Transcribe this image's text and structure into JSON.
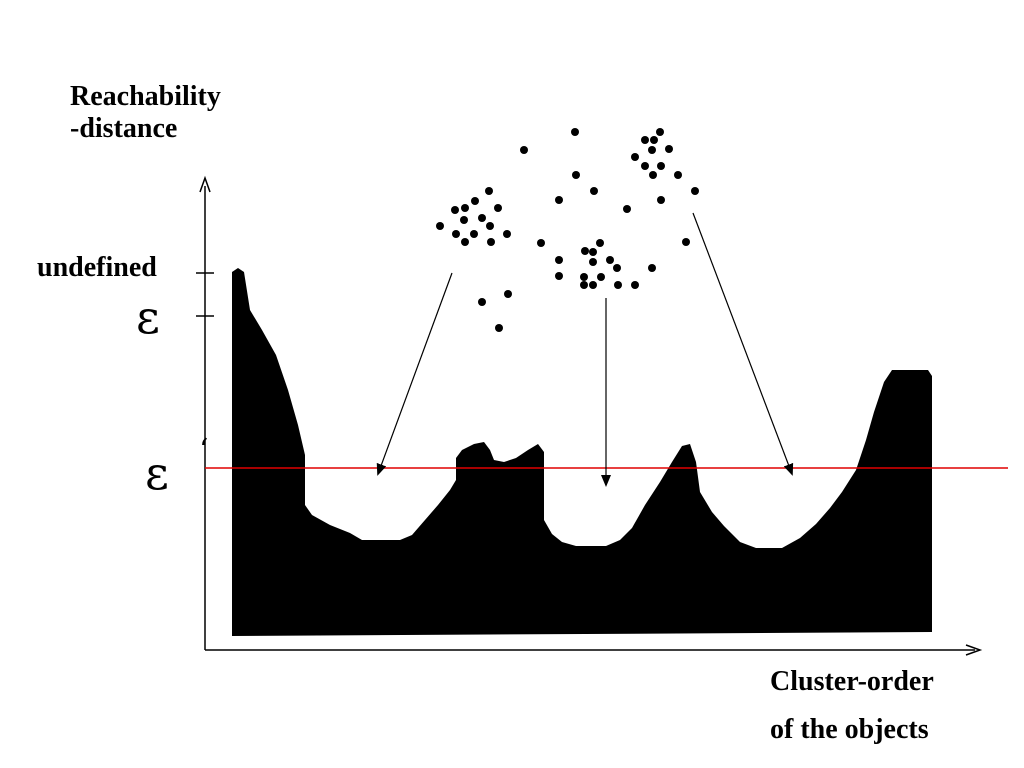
{
  "y_axis": {
    "label_line1": "Reachability",
    "label_line2": "-distance"
  },
  "x_axis": {
    "label_line1": "Cluster-order",
    "label_line2": "of the objects"
  },
  "ticks": {
    "undefined": "undefined",
    "epsilon": "ε",
    "epsilon_prime_symbol": "ε",
    "epsilon_prime_mark": "ʻ"
  },
  "colors": {
    "profile": "#000000",
    "threshold_line": "#e00000",
    "axes": "#000000"
  }
}
